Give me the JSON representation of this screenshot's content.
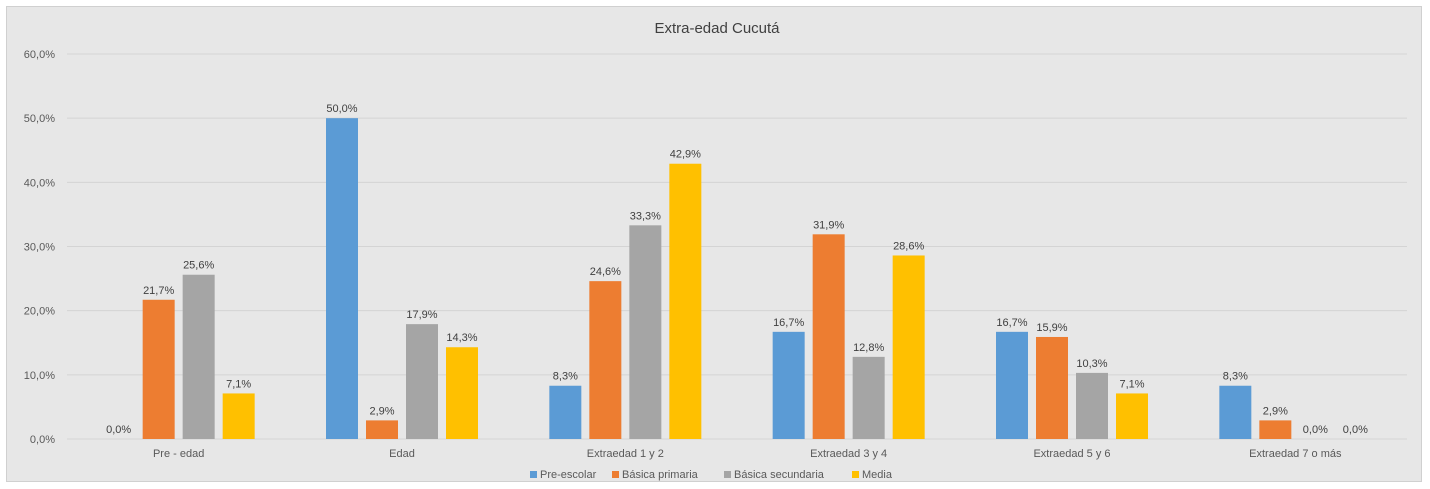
{
  "chart_data": {
    "type": "bar",
    "title": "Extra-edad  Cucutá",
    "categories": [
      "Pre - edad",
      "Edad",
      "Extraedad 1 y 2",
      "Extraedad 3 y 4",
      "Extraedad 5 y 6",
      "Extraedad 7 o más"
    ],
    "series": [
      {
        "name": "Pre-escolar",
        "color": "#5b9bd5",
        "values": [
          0.0,
          50.0,
          8.3,
          16.7,
          16.7,
          8.3
        ],
        "labels": [
          "0,0%",
          "50,0%",
          "8,3%",
          "16,7%",
          "16,7%",
          "8,3%"
        ]
      },
      {
        "name": "Básica primaria",
        "color": "#ed7d31",
        "values": [
          21.7,
          2.9,
          24.6,
          31.9,
          15.9,
          2.9
        ],
        "labels": [
          "21,7%",
          "2,9%",
          "24,6%",
          "31,9%",
          "15,9%",
          "2,9%"
        ]
      },
      {
        "name": "Básica secundaria",
        "color": "#a5a5a5",
        "values": [
          25.6,
          17.9,
          33.3,
          12.8,
          10.3,
          0.0
        ],
        "labels": [
          "25,6%",
          "17,9%",
          "33,3%",
          "12,8%",
          "10,3%",
          "0,0%"
        ]
      },
      {
        "name": "Media",
        "color": "#ffc000",
        "values": [
          7.1,
          14.3,
          42.9,
          28.6,
          7.1,
          0.0
        ],
        "labels": [
          "7,1%",
          "14,3%",
          "42,9%",
          "28,6%",
          "7,1%",
          "0,0%"
        ]
      }
    ],
    "y_ticks": [
      0,
      10,
      20,
      30,
      40,
      50,
      60
    ],
    "y_tick_labels": [
      "0,0%",
      "10,0%",
      "20,0%",
      "30,0%",
      "40,0%",
      "50,0%",
      "60,0%"
    ],
    "ylim": [
      0,
      60
    ],
    "grid": true,
    "legend_position": "bottom"
  }
}
